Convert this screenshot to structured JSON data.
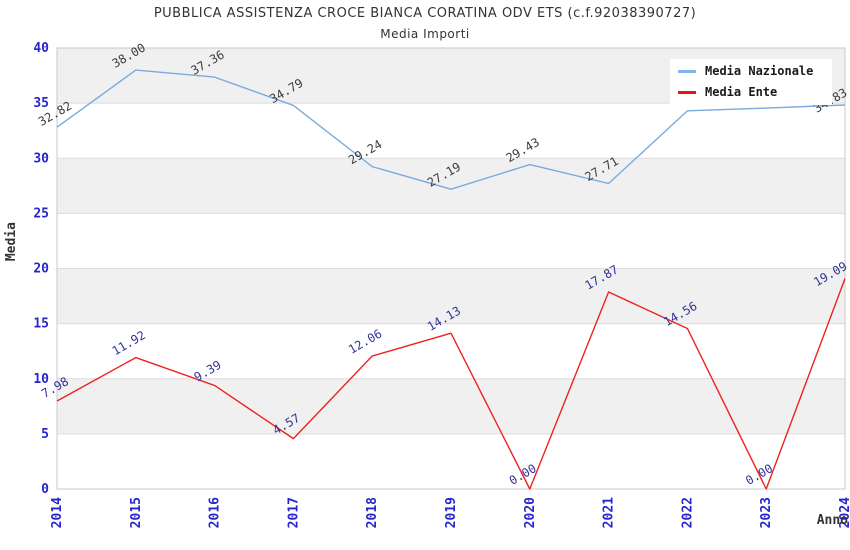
{
  "title": "PUBBLICA ASSISTENZA CROCE BIANCA CORATINA ODV ETS (c.f.92038390727)",
  "subtitle": "Media Importi",
  "legend": {
    "position": "top-right",
    "items": [
      {
        "label": "Media Nazionale",
        "color": "#85b5e5"
      },
      {
        "label": "Media Ente",
        "color": "#ee1111"
      }
    ]
  },
  "axes": {
    "y_title": "Media",
    "x_title": "Anno",
    "y_ticks": [
      "0",
      "5",
      "10",
      "15",
      "20",
      "25",
      "30",
      "35",
      "40"
    ],
    "tick_color": "#2626cc"
  },
  "colors": {
    "band_gray": "#f0f0f0",
    "band_white": "#ffffff",
    "gridline": "#dcdcdc",
    "plot_border": "#c9c9c9",
    "title_text": "#333333"
  },
  "chart_data": {
    "type": "line",
    "title": "PUBBLICA ASSISTENZA CROCE BIANCA CORATINA ODV ETS (c.f.92038390727)",
    "subtitle": "Media Importi",
    "xlabel": "Anno",
    "ylabel": "Media",
    "ylim": [
      0,
      40
    ],
    "y_tick_step": 5,
    "grid": true,
    "legend_position": "top-right",
    "categories": [
      "2014",
      "2015",
      "2016",
      "2017",
      "2018",
      "2019",
      "2020",
      "2021",
      "2022",
      "2023",
      "2024"
    ],
    "series": [
      {
        "name": "Media Nazionale",
        "color": "#7aaade",
        "label_color": "#3c3c3c",
        "values": [
          32.82,
          38.0,
          37.36,
          34.79,
          29.24,
          27.19,
          29.43,
          27.71,
          34.3,
          34.55,
          34.83
        ],
        "point_labels": [
          "32.82",
          "38.00",
          "37.36",
          "34.79",
          "29.24",
          "27.19",
          "29.43",
          "27.71",
          "",
          "",
          "34.83"
        ]
      },
      {
        "name": "Media Ente",
        "color": "#ee2222",
        "label_color": "#333399",
        "values": [
          7.98,
          11.92,
          9.39,
          4.57,
          12.06,
          14.13,
          0.0,
          17.87,
          14.56,
          0.0,
          19.09
        ],
        "point_labels": [
          "7.98",
          "11.92",
          "9.39",
          "4.57",
          "12.06",
          "14.13",
          "0.00",
          "17.87",
          "14.56",
          "0.00",
          "19.09"
        ]
      }
    ]
  }
}
